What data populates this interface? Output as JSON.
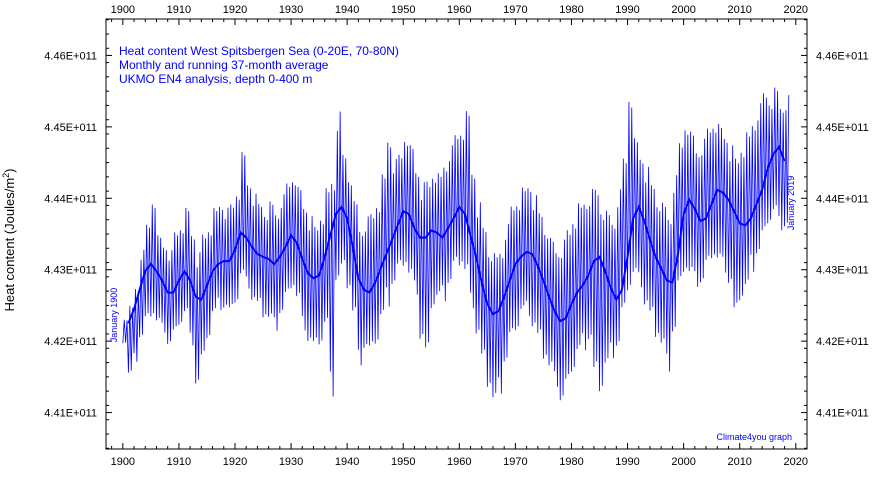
{
  "chart_data": {
    "type": "line",
    "title_lines": [
      "Heat content West Spitsbergen Sea (0-20E, 70-80N)",
      "Monthly and running 37-month average",
      "UKMO EN4 analysis, depth 0-400 m"
    ],
    "ylabel": "Heat content (Joules/m",
    "ylabel_sup": "2",
    "ylabel_close": ")",
    "credit": "Climate4you graph",
    "start_label": "January 1900",
    "end_label": "January 2019",
    "xlim": [
      1897,
      2022
    ],
    "ylim": [
      440490000000.0,
      446510000000.0
    ],
    "x_ticks": [
      1900,
      1910,
      1920,
      1930,
      1940,
      1950,
      1960,
      1970,
      1980,
      1990,
      2000,
      2010,
      2020
    ],
    "y_ticks": [
      {
        "value": 441000000000.0,
        "label": "4.41E+011"
      },
      {
        "value": 442000000000.0,
        "label": "4.42E+011"
      },
      {
        "value": 443000000000.0,
        "label": "4.43E+011"
      },
      {
        "value": 444000000000.0,
        "label": "4.44E+011"
      },
      {
        "value": 445000000000.0,
        "label": "4.45E+011"
      },
      {
        "value": 446000000000.0,
        "label": "4.46E+011"
      }
    ],
    "grid": false,
    "colors": {
      "series": "#0000ff",
      "axis": "#000000",
      "text": "#0000ff"
    },
    "series": [
      {
        "role": "running 37-month average",
        "x": [
          1901,
          1902,
          1903,
          1904,
          1905,
          1906,
          1907,
          1908,
          1909,
          1910,
          1911,
          1912,
          1913,
          1914,
          1915,
          1916,
          1917,
          1918,
          1919,
          1920,
          1921,
          1922,
          1923,
          1924,
          1925,
          1926,
          1927,
          1928,
          1929,
          1930,
          1931,
          1932,
          1933,
          1934,
          1935,
          1936,
          1937,
          1938,
          1939,
          1940,
          1941,
          1942,
          1943,
          1944,
          1945,
          1946,
          1947,
          1948,
          1949,
          1950,
          1951,
          1952,
          1953,
          1954,
          1955,
          1956,
          1957,
          1958,
          1959,
          1960,
          1961,
          1962,
          1963,
          1964,
          1965,
          1966,
          1967,
          1968,
          1969,
          1970,
          1971,
          1972,
          1973,
          1974,
          1975,
          1976,
          1977,
          1978,
          1979,
          1980,
          1981,
          1982,
          1983,
          1984,
          1985,
          1986,
          1987,
          1988,
          1989,
          1990,
          1991,
          1992,
          1993,
          1994,
          1995,
          1996,
          1997,
          1998,
          1999,
          2000,
          2001,
          2002,
          2003,
          2004,
          2005,
          2006,
          2007,
          2008,
          2009,
          2010,
          2011,
          2012,
          2013,
          2014,
          2015,
          2016,
          2017,
          2018
        ],
        "y": [
          442250000000.0,
          442450000000.0,
          442720000000.0,
          442980000000.0,
          443080000000.0,
          442980000000.0,
          442850000000.0,
          442680000000.0,
          442680000000.0,
          442850000000.0,
          442980000000.0,
          442850000000.0,
          442620000000.0,
          442580000000.0,
          442780000000.0,
          442980000000.0,
          443080000000.0,
          443120000000.0,
          443120000000.0,
          443280000000.0,
          443520000000.0,
          443450000000.0,
          443320000000.0,
          443220000000.0,
          443180000000.0,
          443150000000.0,
          443080000000.0,
          443180000000.0,
          443320000000.0,
          443480000000.0,
          443380000000.0,
          443150000000.0,
          442950000000.0,
          442880000000.0,
          442920000000.0,
          443180000000.0,
          443480000000.0,
          443780000000.0,
          443880000000.0,
          443720000000.0,
          443320000000.0,
          442880000000.0,
          442720000000.0,
          442680000000.0,
          442820000000.0,
          443020000000.0,
          443220000000.0,
          443420000000.0,
          443620000000.0,
          443820000000.0,
          443780000000.0,
          443580000000.0,
          443450000000.0,
          443450000000.0,
          443550000000.0,
          443520000000.0,
          443450000000.0,
          443580000000.0,
          443720000000.0,
          443880000000.0,
          443780000000.0,
          443480000000.0,
          443180000000.0,
          442820000000.0,
          442520000000.0,
          442380000000.0,
          442420000000.0,
          442620000000.0,
          442850000000.0,
          443080000000.0,
          443180000000.0,
          443250000000.0,
          443220000000.0,
          443050000000.0,
          442850000000.0,
          442620000000.0,
          442420000000.0,
          442280000000.0,
          442320000000.0,
          442520000000.0,
          442680000000.0,
          442780000000.0,
          442920000000.0,
          443120000000.0,
          443180000000.0,
          442980000000.0,
          442750000000.0,
          442580000000.0,
          442720000000.0,
          443180000000.0,
          443720000000.0,
          443880000000.0,
          443680000000.0,
          443420000000.0,
          443180000000.0,
          443020000000.0,
          442850000000.0,
          442820000000.0,
          443220000000.0,
          443780000000.0,
          443980000000.0,
          443850000000.0,
          443680000000.0,
          443720000000.0,
          443920000000.0,
          444120000000.0,
          444080000000.0,
          443980000000.0,
          443820000000.0,
          443650000000.0,
          443620000000.0,
          443720000000.0,
          443920000000.0,
          444120000000.0,
          444420000000.0,
          444620000000.0,
          444720000000.0,
          444520000000.0
        ]
      },
      {
        "role": "monthly",
        "note": "approximate annual min/max envelope of the monthly series",
        "x": [
          1900,
          1901,
          1902,
          1903,
          1904,
          1905,
          1906,
          1907,
          1908,
          1909,
          1910,
          1911,
          1912,
          1913,
          1914,
          1915,
          1916,
          1917,
          1918,
          1919,
          1920,
          1921,
          1922,
          1923,
          1924,
          1925,
          1926,
          1927,
          1928,
          1929,
          1930,
          1931,
          1932,
          1933,
          1934,
          1935,
          1936,
          1937,
          1938,
          1939,
          1940,
          1941,
          1942,
          1943,
          1944,
          1945,
          1946,
          1947,
          1948,
          1949,
          1950,
          1951,
          1952,
          1953,
          1954,
          1955,
          1956,
          1957,
          1958,
          1959,
          1960,
          1961,
          1962,
          1963,
          1964,
          1965,
          1966,
          1967,
          1968,
          1969,
          1970,
          1971,
          1972,
          1973,
          1974,
          1975,
          1976,
          1977,
          1978,
          1979,
          1980,
          1981,
          1982,
          1983,
          1984,
          1985,
          1986,
          1987,
          1988,
          1989,
          1990,
          1991,
          1992,
          1993,
          1994,
          1995,
          1996,
          1997,
          1998,
          1999,
          2000,
          2001,
          2002,
          2003,
          2004,
          2005,
          2006,
          2007,
          2008,
          2009,
          2010,
          2011,
          2012,
          2013,
          2014,
          2015,
          2016,
          2017,
          2018
        ],
        "min": [
          441950000000.0,
          441450000000.0,
          441650000000.0,
          441950000000.0,
          442150000000.0,
          442250000000.0,
          442150000000.0,
          442050000000.0,
          441850000000.0,
          441950000000.0,
          442150000000.0,
          442250000000.0,
          441850000000.0,
          441250000000.0,
          441550000000.0,
          441950000000.0,
          442250000000.0,
          442350000000.0,
          442350000000.0,
          442250000000.0,
          442450000000.0,
          442750000000.0,
          442650000000.0,
          442450000000.0,
          442350000000.0,
          442250000000.0,
          442150000000.0,
          442050000000.0,
          442250000000.0,
          442450000000.0,
          442650000000.0,
          442450000000.0,
          442050000000.0,
          441850000000.0,
          441750000000.0,
          441850000000.0,
          442050000000.0,
          441050000000.0,
          442650000000.0,
          442850000000.0,
          442650000000.0,
          442250000000.0,
          441550000000.0,
          441750000000.0,
          441650000000.0,
          441850000000.0,
          442150000000.0,
          442350000000.0,
          442650000000.0,
          442850000000.0,
          442950000000.0,
          442750000000.0,
          442550000000.0,
          441850000000.0,
          441550000000.0,
          442350000000.0,
          442450000000.0,
          442450000000.0,
          442650000000.0,
          442850000000.0,
          442950000000.0,
          442750000000.0,
          442350000000.0,
          441950000000.0,
          441550000000.0,
          441250000000.0,
          440980000000.0,
          441150000000.0,
          441550000000.0,
          441850000000.0,
          442050000000.0,
          442250000000.0,
          442250000000.0,
          442050000000.0,
          441850000000.0,
          441650000000.0,
          441450000000.0,
          441250000000.0,
          440980000000.0,
          441150000000.0,
          441450000000.0,
          441650000000.0,
          441750000000.0,
          441850000000.0,
          441250000000.0,
          441150000000.0,
          441450000000.0,
          441650000000.0,
          441750000000.0,
          442150000000.0,
          442550000000.0,
          442750000000.0,
          442650000000.0,
          442350000000.0,
          442150000000.0,
          441950000000.0,
          441750000000.0,
          441450000000.0,
          441950000000.0,
          442550000000.0,
          442850000000.0,
          442750000000.0,
          442650000000.0,
          442650000000.0,
          442850000000.0,
          443050000000.0,
          442950000000.0,
          442850000000.0,
          442650000000.0,
          442150000000.0,
          442450000000.0,
          442550000000.0,
          442850000000.0,
          443050000000.0,
          443250000000.0,
          443550000000.0,
          443650000000.0,
          443450000000.0,
          443450000000.0
        ],
        "max": [
          442350000000.0,
          442550000000.0,
          442850000000.0,
          443350000000.0,
          443750000000.0,
          444150000000.0,
          443550000000.0,
          443450000000.0,
          443350000000.0,
          443650000000.0,
          443750000000.0,
          443950000000.0,
          443650000000.0,
          443350000000.0,
          443650000000.0,
          443750000000.0,
          443950000000.0,
          444050000000.0,
          443950000000.0,
          444050000000.0,
          444250000000.0,
          444750000000.0,
          444350000000.0,
          444150000000.0,
          444050000000.0,
          443950000000.0,
          444050000000.0,
          443950000000.0,
          444150000000.0,
          444350000000.0,
          444450000000.0,
          444250000000.0,
          444050000000.0,
          443850000000.0,
          443750000000.0,
          443950000000.0,
          444250000000.0,
          444550000000.0,
          445350000000.0,
          444750000000.0,
          444450000000.0,
          444050000000.0,
          443750000000.0,
          443850000000.0,
          443950000000.0,
          444150000000.0,
          444450000000.0,
          445050000000.0,
          444650000000.0,
          444750000000.0,
          445050000000.0,
          444850000000.0,
          444550000000.0,
          444350000000.0,
          444450000000.0,
          444550000000.0,
          444450000000.0,
          444650000000.0,
          444850000000.0,
          445050000000.0,
          445150000000.0,
          445350000000.0,
          444550000000.0,
          444050000000.0,
          443750000000.0,
          443450000000.0,
          443350000000.0,
          443450000000.0,
          443750000000.0,
          444050000000.0,
          444150000000.0,
          444250000000.0,
          444350000000.0,
          444150000000.0,
          443950000000.0,
          443750000000.0,
          443550000000.0,
          443450000000.0,
          443550000000.0,
          443750000000.0,
          443950000000.0,
          444050000000.0,
          444150000000.0,
          444250000000.0,
          444350000000.0,
          444150000000.0,
          443950000000.0,
          443850000000.0,
          444250000000.0,
          444750000000.0,
          445750000000.0,
          444950000000.0,
          444750000000.0,
          444550000000.0,
          444350000000.0,
          444150000000.0,
          444050000000.0,
          443950000000.0,
          444450000000.0,
          444950000000.0,
          445250000000.0,
          445050000000.0,
          444850000000.0,
          444950000000.0,
          445150000000.0,
          445250000000.0,
          445150000000.0,
          445050000000.0,
          444850000000.0,
          444750000000.0,
          444950000000.0,
          445050000000.0,
          445250000000.0,
          445450000000.0,
          445650000000.0,
          445550000000.0,
          445650000000.0,
          445450000000.0,
          445550000000.0
        ]
      }
    ]
  }
}
